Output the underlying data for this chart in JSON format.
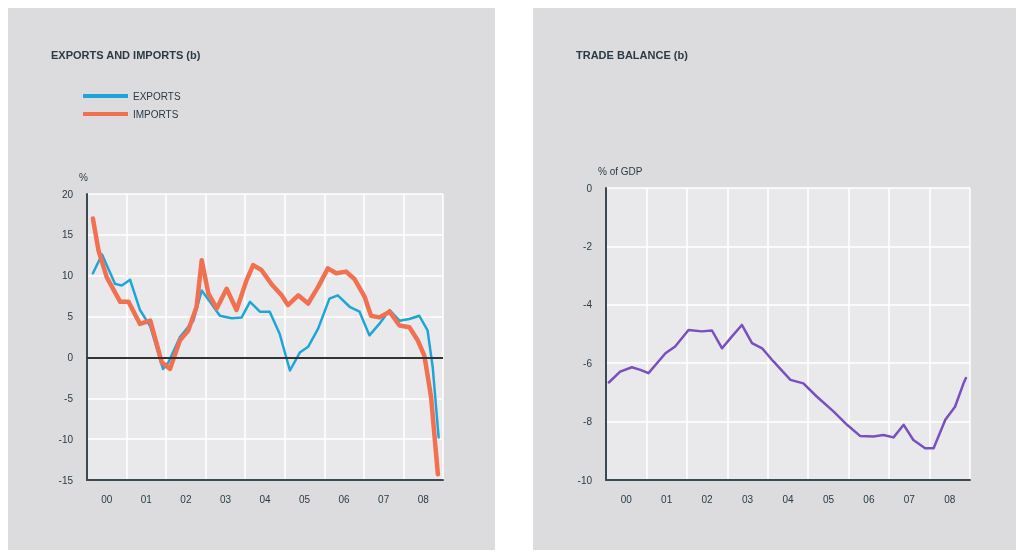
{
  "chart_data": [
    {
      "type": "line",
      "title": "EXPORTS AND IMPORTS (b)",
      "ylabel": "%",
      "xlim": [
        -0.5,
        8.5
      ],
      "xticks": [
        {
          "value": -0.5,
          "label": null
        },
        {
          "value": 0,
          "label": "00"
        },
        {
          "value": 0.5,
          "label": null
        },
        {
          "value": 1,
          "label": "01"
        },
        {
          "value": 1.5,
          "label": null
        },
        {
          "value": 2,
          "label": "02"
        },
        {
          "value": 2.5,
          "label": null
        },
        {
          "value": 3,
          "label": "03"
        },
        {
          "value": 3.5,
          "label": null
        },
        {
          "value": 4,
          "label": "04"
        },
        {
          "value": 4.5,
          "label": null
        },
        {
          "value": 5,
          "label": "05"
        },
        {
          "value": 5.5,
          "label": null
        },
        {
          "value": 6,
          "label": "06"
        },
        {
          "value": 6.5,
          "label": null
        },
        {
          "value": 7,
          "label": "07"
        },
        {
          "value": 7.5,
          "label": null
        },
        {
          "value": 8,
          "label": "08"
        },
        {
          "value": 8.5,
          "label": null
        }
      ],
      "ylim": [
        -15,
        20
      ],
      "yticks": [
        -15,
        -10,
        -5,
        0,
        5,
        10,
        15,
        20
      ],
      "grid": true,
      "legend": "top left",
      "marker": "none",
      "ref_lines": [
        {
          "axis": "y",
          "value": 0,
          "color": "#333333"
        }
      ],
      "series": [
        {
          "name": "EXPORTS",
          "color": "#1ea5d8",
          "x": [
            -0.35,
            -0.12,
            0.21,
            0.38,
            0.59,
            0.84,
            1.1,
            1.42,
            1.56,
            1.85,
            2.19,
            2.4,
            2.61,
            2.86,
            3.16,
            3.41,
            3.62,
            3.87,
            4.12,
            4.37,
            4.63,
            4.88,
            5.09,
            5.34,
            5.63,
            5.84,
            6.14,
            6.39,
            6.64,
            6.89,
            7.15,
            7.4,
            7.65,
            7.9,
            8.11,
            8.24,
            8.39
          ],
          "values": [
            10.3,
            12.6,
            9.0,
            8.8,
            9.5,
            5.8,
            3.8,
            -1.4,
            -0.6,
            2.5,
            4.5,
            8.2,
            6.8,
            5.1,
            4.8,
            4.9,
            6.8,
            5.6,
            5.6,
            2.9,
            -1.6,
            0.6,
            1.3,
            3.5,
            7.2,
            7.6,
            6.2,
            5.6,
            2.7,
            4.1,
            5.8,
            4.5,
            4.7,
            5.1,
            3.3,
            -1.2,
            -9.8
          ]
        },
        {
          "name": "IMPORTS",
          "color": "#f07050",
          "x": [
            -0.35,
            -0.21,
            0,
            0.34,
            0.55,
            0.84,
            1.1,
            1.39,
            1.6,
            1.85,
            2.06,
            2.27,
            2.4,
            2.57,
            2.78,
            3.03,
            3.28,
            3.53,
            3.7,
            3.91,
            4.16,
            4.42,
            4.58,
            4.84,
            5.09,
            5.34,
            5.59,
            5.8,
            6.05,
            6.26,
            6.52,
            6.68,
            6.89,
            7.15,
            7.4,
            7.65,
            7.86,
            8.03,
            8.2,
            8.37
          ],
          "values": [
            17.0,
            13.1,
            9.8,
            6.8,
            6.8,
            4.1,
            4.5,
            -0.6,
            -1.4,
            2.1,
            3.3,
            6.2,
            11.9,
            7.8,
            6.0,
            8.4,
            5.8,
            9.4,
            11.3,
            10.7,
            9.0,
            7.6,
            6.4,
            7.6,
            6.6,
            8.6,
            10.9,
            10.3,
            10.5,
            9.6,
            7.4,
            5.1,
            4.9,
            5.6,
            3.9,
            3.7,
            2.1,
            0.2,
            -4.9,
            -14.3
          ]
        }
      ]
    },
    {
      "type": "line",
      "title": "TRADE BALANCE (b)",
      "ylabel": "% of GDP",
      "xlim": [
        -0.5,
        8.5
      ],
      "xticks": [
        {
          "value": -0.5,
          "label": null
        },
        {
          "value": 0,
          "label": "00"
        },
        {
          "value": 0.5,
          "label": null
        },
        {
          "value": 1,
          "label": "01"
        },
        {
          "value": 1.5,
          "label": null
        },
        {
          "value": 2,
          "label": "02"
        },
        {
          "value": 2.5,
          "label": null
        },
        {
          "value": 3,
          "label": "03"
        },
        {
          "value": 3.5,
          "label": null
        },
        {
          "value": 4,
          "label": "04"
        },
        {
          "value": 4.5,
          "label": null
        },
        {
          "value": 5,
          "label": "05"
        },
        {
          "value": 5.5,
          "label": null
        },
        {
          "value": 6,
          "label": "06"
        },
        {
          "value": 6.5,
          "label": null
        },
        {
          "value": 7,
          "label": "07"
        },
        {
          "value": 7.5,
          "label": null
        },
        {
          "value": 8,
          "label": "08"
        },
        {
          "value": 8.5,
          "label": null
        }
      ],
      "ylim": [
        -10,
        0
      ],
      "yticks": [
        -10,
        -8,
        -6,
        -4,
        -2,
        0
      ],
      "grid": true,
      "marker": "none",
      "series": [
        {
          "color": "#7a4fbf",
          "x": [
            -0.43,
            -0.15,
            0.14,
            0.35,
            0.55,
            0.76,
            0.97,
            1.21,
            1.54,
            1.87,
            2.12,
            2.37,
            2.61,
            2.86,
            3.11,
            3.36,
            3.64,
            4.06,
            4.38,
            4.71,
            5.13,
            5.46,
            5.78,
            6.11,
            6.36,
            6.61,
            6.86,
            7.1,
            7.39,
            7.6,
            7.89,
            8.13,
            8.34,
            8.4
          ],
          "values": [
            -6.66,
            -6.29,
            -6.14,
            -6.23,
            -6.34,
            -6.0,
            -5.66,
            -5.43,
            -4.86,
            -4.91,
            -4.88,
            -5.49,
            -5.09,
            -4.69,
            -5.31,
            -5.49,
            -5.94,
            -6.57,
            -6.69,
            -7.14,
            -7.66,
            -8.11,
            -8.49,
            -8.51,
            -8.46,
            -8.54,
            -8.11,
            -8.63,
            -8.91,
            -8.91,
            -7.94,
            -7.49,
            -6.69,
            -6.51
          ]
        }
      ]
    }
  ]
}
